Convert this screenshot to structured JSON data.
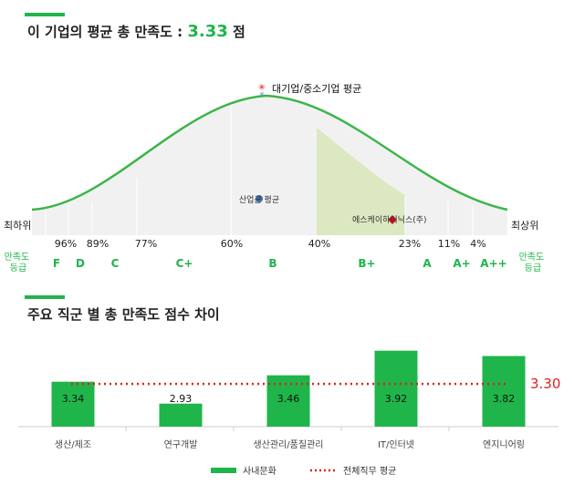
{
  "section1": {
    "title_prefix": "이 기업의 평균 총 만족도 :",
    "score": "3.33",
    "title_suffix": "점"
  },
  "distribution": {
    "left_label": "최하위",
    "right_label": "최상위",
    "grade_row_label": "만족도\n등급",
    "percentiles": [
      "96%",
      "89%",
      "77%",
      "60%",
      "40%",
      "23%",
      "11%",
      "4%"
    ],
    "grades": [
      "F",
      "D",
      "C",
      "C+",
      "B",
      "B+",
      "A",
      "A+",
      "A++"
    ],
    "markers": {
      "large_avg": "대기업/중소기업 평균",
      "industry_avg": "산업군 평균",
      "company": "에스케이하이닉스(주)"
    }
  },
  "section2": {
    "title": "주요 직군 별 총 만족도 점수 차이"
  },
  "chart_data": {
    "type": "bar",
    "categories": [
      "생산/제조",
      "연구개발",
      "생산관리/품질관리",
      "IT/인터넷",
      "엔지니어링"
    ],
    "series": [
      {
        "name": "사내문화",
        "values": [
          3.34,
          2.93,
          3.46,
          3.92,
          3.82
        ],
        "color": "#1fb54a"
      }
    ],
    "reference_line": {
      "name": "전체직무 평균",
      "value": 3.3,
      "label": "3.30",
      "color": "#e02020"
    },
    "value_labels": [
      "3.34",
      "2.93",
      "3.46",
      "3.92",
      "3.82"
    ],
    "legend_position": "bottom",
    "grid": false,
    "ylim": [
      2.5,
      4.0
    ]
  }
}
